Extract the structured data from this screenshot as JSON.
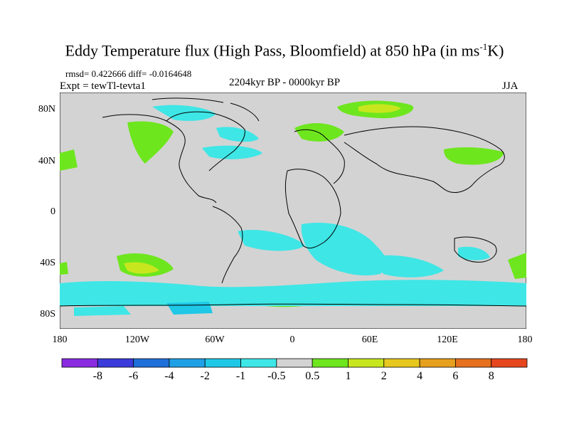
{
  "title_main": "Eddy Temperature flux (High Pass, Bloomfield) at 850 hPa (in ms",
  "title_sup": "-1",
  "title_end": "K)",
  "stats": "rmsd= 0.422666 diff= -0.0164648",
  "experiment": "Expt = tewTl-tevta1",
  "period": "2204kyr BP - 0000kyr BP",
  "season": "JJA",
  "lat_labels": [
    "80N",
    "40N",
    "0",
    "40S",
    "80S"
  ],
  "lon_labels": [
    "180",
    "120W",
    "60W",
    "0",
    "60E",
    "120E",
    "180"
  ],
  "colorbar": {
    "colors": [
      "#8a2be2",
      "#3b3bdc",
      "#1e6fd9",
      "#1ea0e6",
      "#1ec8e6",
      "#3ee6e6",
      "#d3d3d3",
      "#6ee61e",
      "#c8e61e",
      "#e6c81e",
      "#e6a01e",
      "#e6701e",
      "#e6461e"
    ],
    "labels": [
      "-8",
      "-6",
      "-4",
      "-2",
      "-1",
      "-0.5",
      "0.5",
      "1",
      "2",
      "4",
      "6",
      "8"
    ]
  },
  "colors": {
    "background": "#d3d3d3",
    "pos_weak": "#6ee61e",
    "pos_mid": "#c8e61e",
    "pos_strong": "#e6c81e",
    "neg_weak": "#3ee6e6",
    "neg_mid": "#1ec8e6"
  }
}
